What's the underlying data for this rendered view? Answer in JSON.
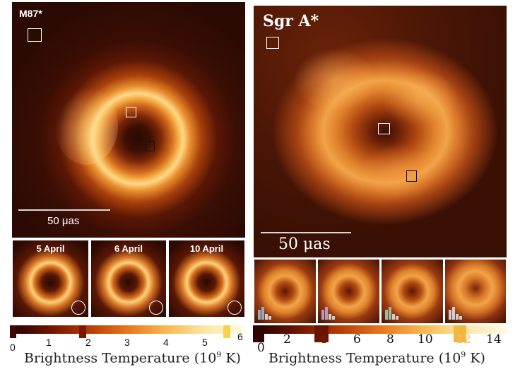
{
  "m87": {
    "title": "M87*",
    "scale_label": "50 μas",
    "epochs": [
      "5 April",
      "6 April",
      "10 April"
    ],
    "colorbar": {
      "ticks": [
        "0",
        "1",
        "2",
        "3",
        "4",
        "5",
        "6"
      ],
      "label": "Brightness Temperature (10",
      "label_exp": "9",
      "label_unit": " K)"
    }
  },
  "sgra": {
    "title": "Sgr A*",
    "scale_label": "50 μas",
    "colorbar": {
      "ticks": [
        "0",
        "2",
        "4",
        "6",
        "8",
        "10",
        "12",
        "14"
      ],
      "label": "Brightness Temperature (10",
      "label_exp": "9",
      "label_unit": " K)"
    }
  },
  "colors": {
    "background_dark": "#2a0902",
    "ring_hot": "#ffd27a",
    "ring_mid": "#e37a1f",
    "colormap": [
      "#200300",
      "#6b1300",
      "#b63a05",
      "#e8751c",
      "#f9b851",
      "#fde6a6",
      "#fffbe6"
    ]
  },
  "icons": [
    "box-marker-icon",
    "beam-circle-icon",
    "histogram-icon"
  ]
}
